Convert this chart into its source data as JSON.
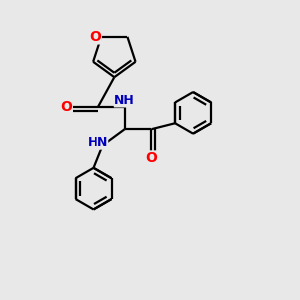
{
  "bg_color": "#e8e8e8",
  "bond_color": "#000000",
  "oxygen_color": "#ff0000",
  "nitrogen_color": "#0000bb",
  "line_width": 1.6,
  "figsize": [
    3.0,
    3.0
  ],
  "dpi": 100,
  "xlim": [
    0,
    10
  ],
  "ylim": [
    0,
    10
  ]
}
